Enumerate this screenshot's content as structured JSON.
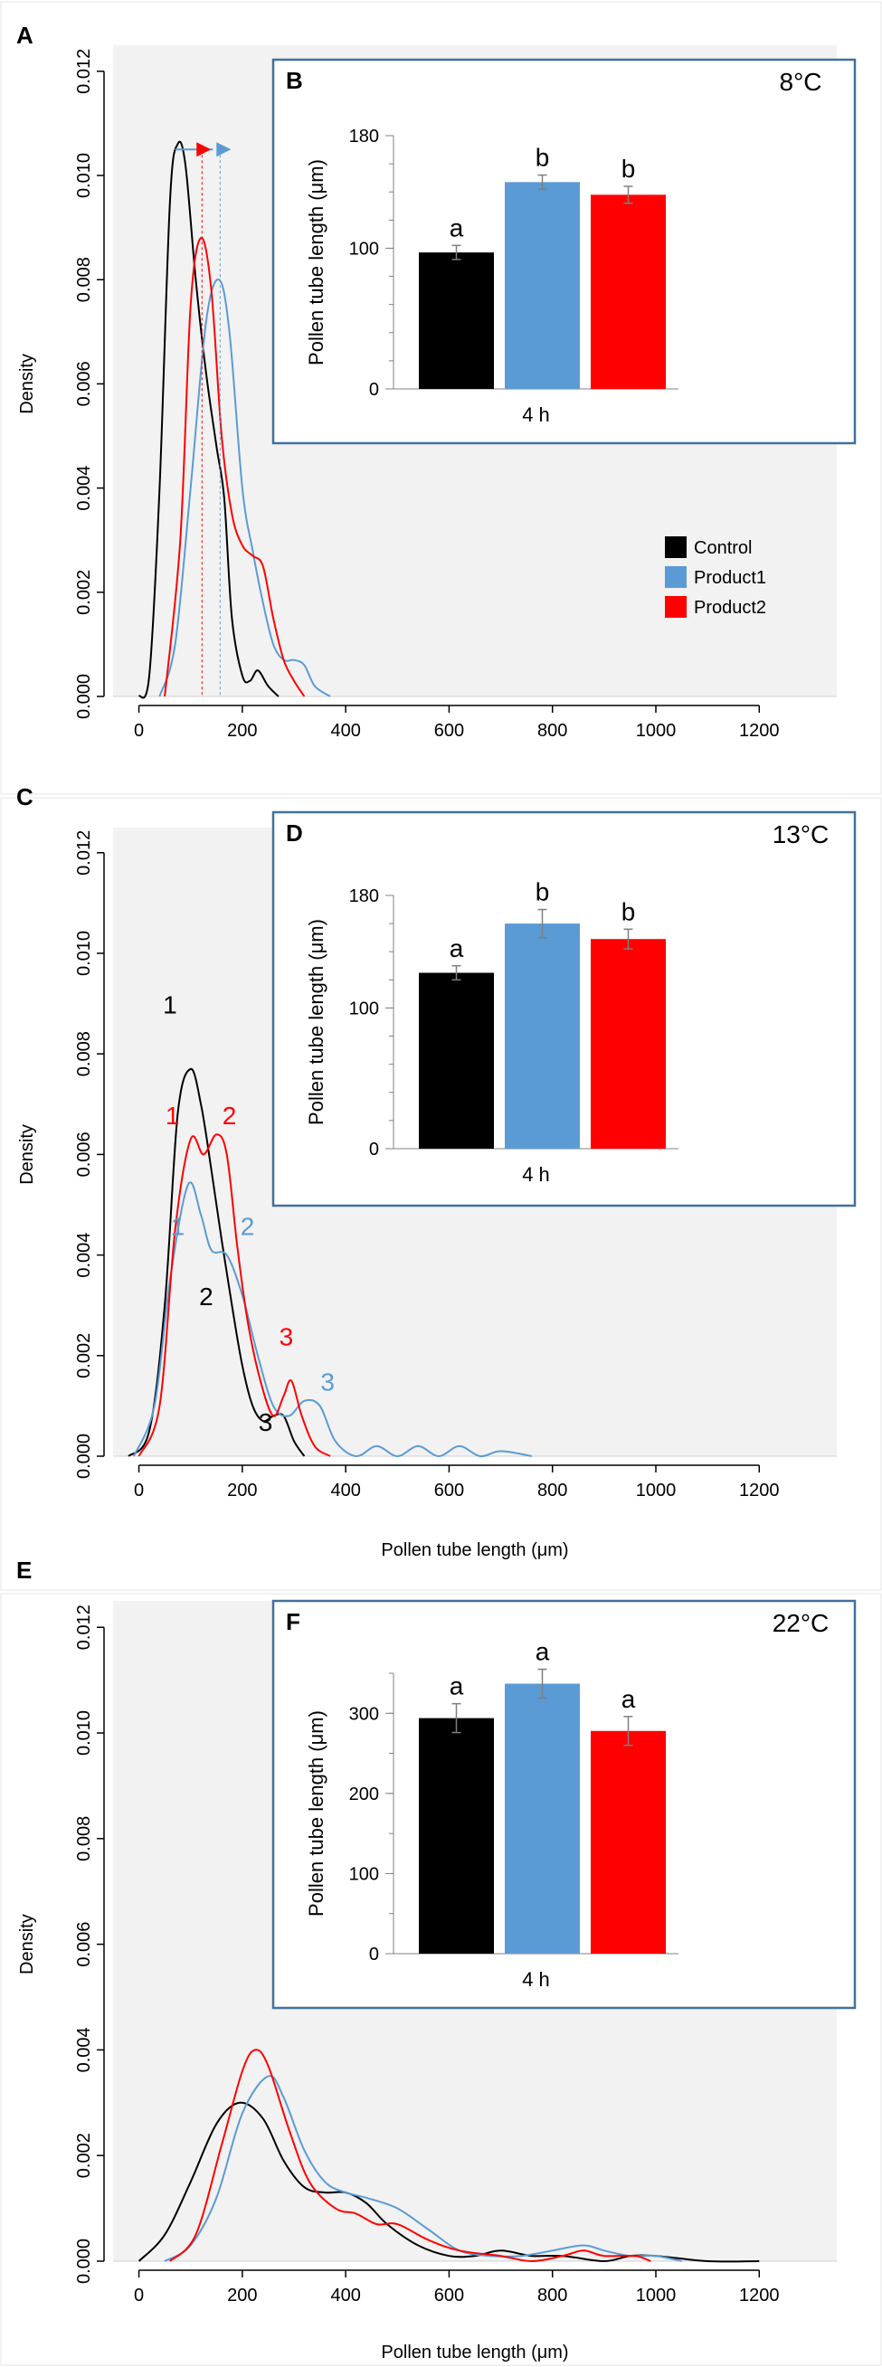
{
  "colors": {
    "control": "#000000",
    "product1": "#5b9bd5",
    "product2": "#ff0000",
    "plot_bg": "#f2f2f2",
    "inset_border": "#41719c",
    "axis": "#000000"
  },
  "panels": [
    {
      "letter": "A",
      "ylabel": "Density",
      "xlabel": "",
      "xlim": [
        -50,
        1350
      ],
      "ylim": [
        0,
        0.0125
      ],
      "xticks": [
        0,
        200,
        400,
        600,
        800,
        1000,
        1200
      ],
      "yticks": [
        "0.000",
        "0.002",
        "0.004",
        "0.006",
        "0.008",
        "0.010",
        "0.012"
      ],
      "legend": {
        "entries": [
          {
            "label": "Control",
            "color": "#000000"
          },
          {
            "label": "Product1",
            "color": "#5b9bd5"
          },
          {
            "label": "Product2",
            "color": "#ff0000"
          }
        ]
      },
      "arrow": {
        "y": 0.0105,
        "x_start": 70,
        "x_red": 122,
        "x_blue": 157
      },
      "density_curves": [
        {
          "name": "Control",
          "color": "#000000",
          "points": [
            [
              0,
              0
            ],
            [
              20,
              0.0004
            ],
            [
              40,
              0.004
            ],
            [
              60,
              0.0095
            ],
            [
              75,
              0.0106
            ],
            [
              90,
              0.0102
            ],
            [
              110,
              0.008
            ],
            [
              130,
              0.0062
            ],
            [
              150,
              0.0048
            ],
            [
              165,
              0.0038
            ],
            [
              180,
              0.0015
            ],
            [
              200,
              0.0004
            ],
            [
              215,
              0.0003
            ],
            [
              230,
              0.0005
            ],
            [
              250,
              0.0002
            ],
            [
              270,
              0
            ]
          ]
        },
        {
          "name": "Product1",
          "color": "#5b9bd5",
          "points": [
            [
              40,
              0
            ],
            [
              70,
              0.001
            ],
            [
              100,
              0.004
            ],
            [
              130,
              0.0072
            ],
            [
              155,
              0.008
            ],
            [
              175,
              0.007
            ],
            [
              200,
              0.004
            ],
            [
              220,
              0.0028
            ],
            [
              240,
              0.0018
            ],
            [
              260,
              0.001
            ],
            [
              280,
              0.0007
            ],
            [
              300,
              0.0007
            ],
            [
              320,
              0.0006
            ],
            [
              340,
              0.0002
            ],
            [
              370,
              0
            ]
          ]
        },
        {
          "name": "Product2",
          "color": "#ff0000",
          "points": [
            [
              50,
              0
            ],
            [
              80,
              0.003
            ],
            [
              100,
              0.0075
            ],
            [
              120,
              0.0088
            ],
            [
              140,
              0.0078
            ],
            [
              160,
              0.005
            ],
            [
              180,
              0.0035
            ],
            [
              200,
              0.0029
            ],
            [
              220,
              0.0027
            ],
            [
              240,
              0.0025
            ],
            [
              260,
              0.0015
            ],
            [
              280,
              0.0007
            ],
            [
              300,
              0.0003
            ],
            [
              320,
              0
            ]
          ]
        }
      ],
      "inset": {
        "letter": "B",
        "temperature": "8°C",
        "ylabel": "Pollen tube length (μm)",
        "xlabel": "4 h",
        "ylim": [
          0,
          180
        ],
        "yticks": [
          "0",
          "100",
          "180"
        ],
        "bars": [
          {
            "name": "Control",
            "value": 97,
            "error": 5,
            "color": "#000000",
            "letter": "a"
          },
          {
            "name": "Product1",
            "value": 147,
            "error": 5,
            "color": "#5b9bd5",
            "letter": "b"
          },
          {
            "name": "Product2",
            "value": 138,
            "error": 6,
            "color": "#ff0000",
            "letter": "b"
          }
        ]
      }
    },
    {
      "letter": "C",
      "ylabel": "Density",
      "xlabel": "Pollen tube length (μm)",
      "xlim": [
        -50,
        1350
      ],
      "ylim": [
        0,
        0.0125
      ],
      "xticks": [
        0,
        200,
        400,
        600,
        800,
        1000,
        1200
      ],
      "yticks": [
        "0.000",
        "0.002",
        "0.004",
        "0.006",
        "0.008",
        "0.010",
        "0.012"
      ],
      "peak_labels": [
        {
          "text": "1",
          "x": 60,
          "y": 0.0088,
          "color": "#000000"
        },
        {
          "text": "2",
          "x": 130,
          "y": 0.003,
          "color": "#000000"
        },
        {
          "text": "3",
          "x": 245,
          "y": 0.0005,
          "color": "#000000"
        },
        {
          "text": "1",
          "x": 65,
          "y": 0.0066,
          "color": "#ff0000"
        },
        {
          "text": "2",
          "x": 175,
          "y": 0.0066,
          "color": "#ff0000"
        },
        {
          "text": "3",
          "x": 285,
          "y": 0.0022,
          "color": "#ff0000"
        },
        {
          "text": "1",
          "x": 75,
          "y": 0.0044,
          "color": "#5b9bd5"
        },
        {
          "text": "2",
          "x": 210,
          "y": 0.0044,
          "color": "#5b9bd5"
        },
        {
          "text": "3",
          "x": 365,
          "y": 0.0013,
          "color": "#5b9bd5"
        }
      ],
      "density_curves": [
        {
          "name": "Control",
          "color": "#000000",
          "points": [
            [
              -20,
              0
            ],
            [
              20,
              0.0005
            ],
            [
              50,
              0.003
            ],
            [
              75,
              0.0068
            ],
            [
              100,
              0.0077
            ],
            [
              120,
              0.007
            ],
            [
              140,
              0.0057
            ],
            [
              160,
              0.0043
            ],
            [
              180,
              0.003
            ],
            [
              200,
              0.0018
            ],
            [
              220,
              0.001
            ],
            [
              240,
              0.0007
            ],
            [
              260,
              0.0008
            ],
            [
              280,
              0.0008
            ],
            [
              300,
              0.0003
            ],
            [
              320,
              0
            ]
          ]
        },
        {
          "name": "Product1",
          "color": "#5b9bd5",
          "points": [
            [
              -10,
              0
            ],
            [
              30,
              0.001
            ],
            [
              60,
              0.0035
            ],
            [
              95,
              0.0054
            ],
            [
              120,
              0.0048
            ],
            [
              140,
              0.0041
            ],
            [
              170,
              0.004
            ],
            [
              200,
              0.0032
            ],
            [
              230,
              0.002
            ],
            [
              260,
              0.001
            ],
            [
              290,
              0.0008
            ],
            [
              320,
              0.0011
            ],
            [
              350,
              0.001
            ],
            [
              380,
              0.0003
            ],
            [
              420,
              0
            ],
            [
              460,
              0.0002
            ],
            [
              500,
              0
            ],
            [
              540,
              0.0002
            ],
            [
              580,
              0
            ],
            [
              620,
              0.0002
            ],
            [
              660,
              0
            ],
            [
              700,
              0.0001
            ],
            [
              760,
              0
            ]
          ]
        },
        {
          "name": "Product2",
          "color": "#ff0000",
          "points": [
            [
              0,
              0
            ],
            [
              40,
              0.001
            ],
            [
              70,
              0.0045
            ],
            [
              100,
              0.0063
            ],
            [
              125,
              0.006
            ],
            [
              150,
              0.0064
            ],
            [
              170,
              0.006
            ],
            [
              190,
              0.0042
            ],
            [
              210,
              0.0027
            ],
            [
              235,
              0.0015
            ],
            [
              260,
              0.0008
            ],
            [
              280,
              0.0012
            ],
            [
              295,
              0.0015
            ],
            [
              315,
              0.0008
            ],
            [
              340,
              0.0002
            ],
            [
              370,
              0
            ]
          ]
        }
      ],
      "inset": {
        "letter": "D",
        "temperature": "13°C",
        "ylabel": "Pollen tube length (μm)",
        "xlabel": "4 h",
        "ylim": [
          0,
          180
        ],
        "yticks": [
          "0",
          "100",
          "180"
        ],
        "bars": [
          {
            "name": "Control",
            "value": 125,
            "error": 5,
            "color": "#000000",
            "letter": "a"
          },
          {
            "name": "Product1",
            "value": 160,
            "error": 10,
            "color": "#5b9bd5",
            "letter": "b"
          },
          {
            "name": "Product2",
            "value": 149,
            "error": 7,
            "color": "#ff0000",
            "letter": "b"
          }
        ]
      }
    },
    {
      "letter": "E",
      "ylabel": "Density",
      "xlabel": "Pollen tube length (μm)",
      "xlim": [
        -50,
        1350
      ],
      "ylim": [
        0,
        0.0125
      ],
      "xticks": [
        0,
        200,
        400,
        600,
        800,
        1000,
        1200
      ],
      "yticks": [
        "0.000",
        "0.002",
        "0.004",
        "0.006",
        "0.008",
        "0.010",
        "0.012"
      ],
      "density_curves": [
        {
          "name": "Control",
          "color": "#000000",
          "points": [
            [
              0,
              0
            ],
            [
              50,
              0.0005
            ],
            [
              100,
              0.0015
            ],
            [
              150,
              0.0026
            ],
            [
              195,
              0.003
            ],
            [
              240,
              0.0027
            ],
            [
              280,
              0.0019
            ],
            [
              320,
              0.0014
            ],
            [
              360,
              0.0013
            ],
            [
              400,
              0.0013
            ],
            [
              440,
              0.0011
            ],
            [
              480,
              0.0007
            ],
            [
              540,
              0.0003
            ],
            [
              600,
              0.0001
            ],
            [
              650,
              0.0001
            ],
            [
              700,
              0.0002
            ],
            [
              760,
              0.0001
            ],
            [
              820,
              0.0001
            ],
            [
              900,
              0
            ],
            [
              950,
              0.0001
            ],
            [
              1000,
              0.0001
            ],
            [
              1100,
              0
            ],
            [
              1200,
              0
            ]
          ]
        },
        {
          "name": "Product1",
          "color": "#5b9bd5",
          "points": [
            [
              50,
              0
            ],
            [
              100,
              0.0003
            ],
            [
              150,
              0.0012
            ],
            [
              200,
              0.0028
            ],
            [
              250,
              0.0035
            ],
            [
              280,
              0.0031
            ],
            [
              320,
              0.0021
            ],
            [
              360,
              0.0015
            ],
            [
              400,
              0.0013
            ],
            [
              440,
              0.0012
            ],
            [
              500,
              0.001
            ],
            [
              560,
              0.0006
            ],
            [
              620,
              0.0002
            ],
            [
              680,
              0.0001
            ],
            [
              740,
              0.0001
            ],
            [
              800,
              0.0002
            ],
            [
              860,
              0.0003
            ],
            [
              900,
              0.0002
            ],
            [
              950,
              0.0001
            ],
            [
              1000,
              0.0001
            ],
            [
              1050,
              0
            ]
          ]
        },
        {
          "name": "Product2",
          "color": "#ff0000",
          "points": [
            [
              60,
              0
            ],
            [
              110,
              0.0005
            ],
            [
              160,
              0.0022
            ],
            [
              200,
              0.0036
            ],
            [
              225,
              0.004
            ],
            [
              250,
              0.0037
            ],
            [
              290,
              0.0025
            ],
            [
              330,
              0.0015
            ],
            [
              380,
              0.001
            ],
            [
              420,
              0.0009
            ],
            [
              460,
              0.0007
            ],
            [
              500,
              0.0007
            ],
            [
              560,
              0.0004
            ],
            [
              620,
              0.0002
            ],
            [
              700,
              0.0001
            ],
            [
              760,
              0
            ],
            [
              820,
              0.0001
            ],
            [
              860,
              0.0002
            ],
            [
              900,
              0.0001
            ],
            [
              960,
              0.0001
            ],
            [
              990,
              0
            ]
          ]
        }
      ],
      "inset": {
        "letter": "F",
        "temperature": "22°C",
        "ylabel": "Pollen tube length (μm)",
        "xlabel": "4 h",
        "ylim": [
          0,
          350
        ],
        "yticks": [
          "0",
          "100",
          "200",
          "300"
        ],
        "bars": [
          {
            "name": "Control",
            "value": 294,
            "error": 18,
            "color": "#000000",
            "letter": "a"
          },
          {
            "name": "Product1",
            "value": 337,
            "error": 18,
            "color": "#5b9bd5",
            "letter": "a"
          },
          {
            "name": "Product2",
            "value": 278,
            "error": 18,
            "color": "#ff0000",
            "letter": "a"
          }
        ]
      }
    }
  ],
  "chart_data": [
    {
      "type": "line",
      "panel": "A",
      "title": "",
      "xlabel": "",
      "ylabel": "Density",
      "xlim": [
        -50,
        1350
      ],
      "ylim": [
        0,
        0.0125
      ],
      "series": [
        "Control",
        "Product1",
        "Product2"
      ]
    },
    {
      "type": "bar",
      "panel": "B",
      "title": "8°C",
      "categories": [
        "Control",
        "Product1",
        "Product2"
      ],
      "values": [
        97,
        147,
        138
      ],
      "xlabel": "4 h",
      "ylabel": "Pollen tube length (μm)",
      "ylim": [
        0,
        180
      ]
    },
    {
      "type": "line",
      "panel": "C",
      "title": "",
      "xlabel": "Pollen tube length (μm)",
      "ylabel": "Density",
      "xlim": [
        -50,
        1350
      ],
      "ylim": [
        0,
        0.0125
      ],
      "series": [
        "Control",
        "Product1",
        "Product2"
      ]
    },
    {
      "type": "bar",
      "panel": "D",
      "title": "13°C",
      "categories": [
        "Control",
        "Product1",
        "Product2"
      ],
      "values": [
        125,
        160,
        149
      ],
      "xlabel": "4 h",
      "ylabel": "Pollen tube length (μm)",
      "ylim": [
        0,
        180
      ]
    },
    {
      "type": "line",
      "panel": "E",
      "title": "",
      "xlabel": "Pollen tube length (μm)",
      "ylabel": "Density",
      "xlim": [
        -50,
        1350
      ],
      "ylim": [
        0,
        0.0125
      ],
      "series": [
        "Control",
        "Product1",
        "Product2"
      ]
    },
    {
      "type": "bar",
      "panel": "F",
      "title": "22°C",
      "categories": [
        "Control",
        "Product1",
        "Product2"
      ],
      "values": [
        294,
        337,
        278
      ],
      "xlabel": "4 h",
      "ylabel": "Pollen tube length (μm)",
      "ylim": [
        0,
        350
      ]
    }
  ]
}
